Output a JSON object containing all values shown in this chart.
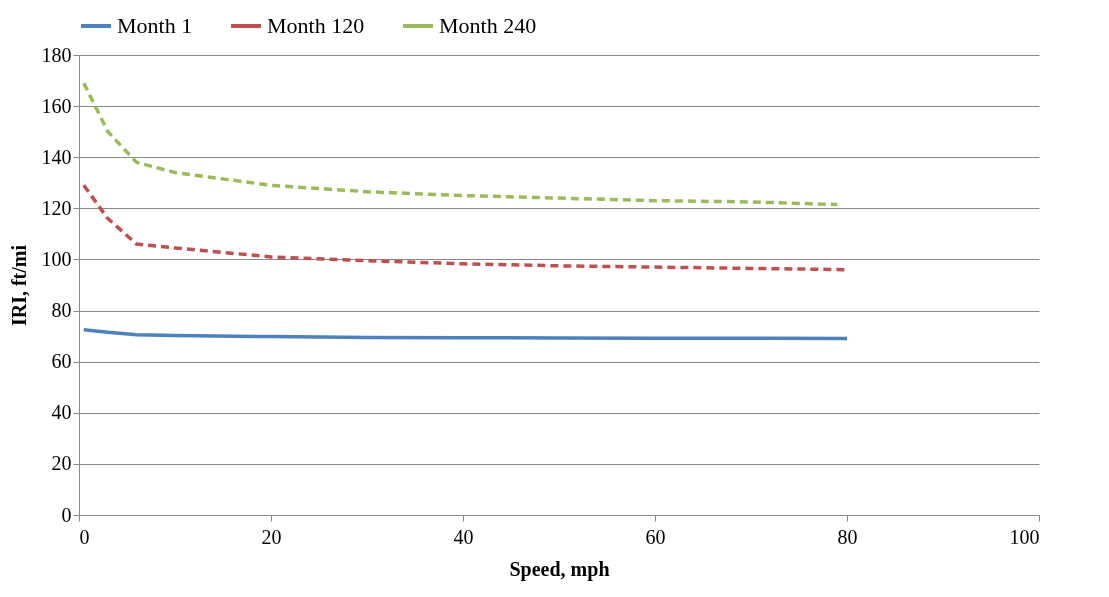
{
  "chart_data": {
    "type": "line",
    "xlabel": "Speed, mph",
    "ylabel": "IRI, ft/mi",
    "xlim": [
      0,
      100
    ],
    "xticks": [
      0,
      20,
      40,
      60,
      80,
      100
    ],
    "ylim": [
      0,
      180
    ],
    "yticks": [
      0,
      20,
      40,
      60,
      80,
      100,
      120,
      140,
      160,
      180
    ],
    "grid": "y",
    "legend": "top",
    "marker": "none",
    "series": [
      {
        "name": "Month 1",
        "color": "#4f81bd",
        "line_style": "solid",
        "x": [
          0.5,
          3,
          6,
          10,
          20,
          30,
          40,
          50,
          60,
          70,
          80
        ],
        "values": [
          72.5,
          71.5,
          70.5,
          70.2,
          69.8,
          69.5,
          69.4,
          69.3,
          69.2,
          69.2,
          69.1
        ]
      },
      {
        "name": "Month 120",
        "color": "#c0504d",
        "line_style": "dashed",
        "x": [
          0.5,
          3,
          6,
          10,
          20,
          30,
          40,
          50,
          60,
          70,
          80
        ],
        "values": [
          129,
          116,
          106,
          104.5,
          101,
          99.5,
          98.3,
          97.5,
          97,
          96.5,
          96
        ]
      },
      {
        "name": "Month 240",
        "color": "#9bbb59",
        "line_style": "dashed",
        "x": [
          0.5,
          3,
          6,
          10,
          20,
          30,
          40,
          50,
          60,
          70,
          79
        ],
        "values": [
          169,
          150,
          138,
          134,
          129,
          126.5,
          125,
          124,
          123,
          122.5,
          121.5
        ]
      }
    ]
  }
}
